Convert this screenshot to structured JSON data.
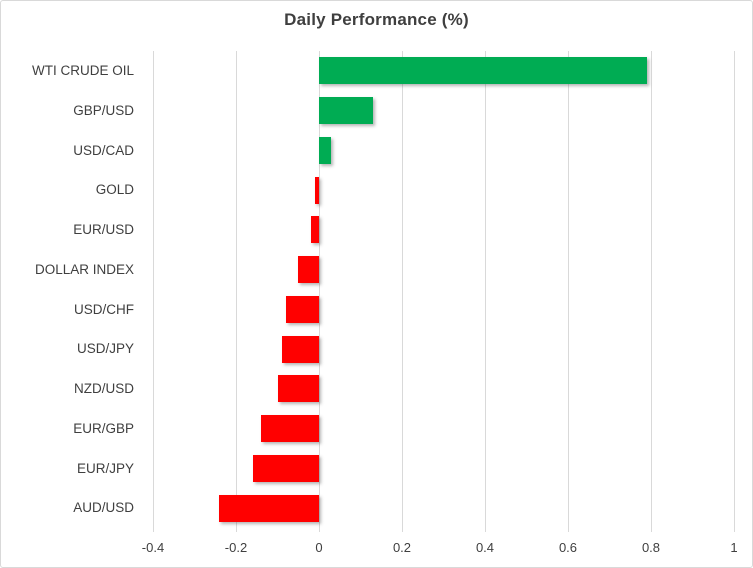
{
  "colors": {
    "positive": "#00AC53",
    "negative": "#FF0000",
    "gridline": "#D9D9D9",
    "border": "#D9D9D9",
    "text": "#3F3F3F"
  },
  "chart_data": {
    "type": "bar",
    "orientation": "horizontal",
    "title": "Daily Performance (%)",
    "categories": [
      "WTI CRUDE OIL",
      "GBP/USD",
      "USD/CAD",
      "GOLD",
      "EUR/USD",
      "DOLLAR INDEX",
      "USD/CHF",
      "USD/JPY",
      "NZD/USD",
      "EUR/GBP",
      "EUR/JPY",
      "AUD/USD"
    ],
    "values": [
      0.79,
      0.13,
      0.03,
      -0.01,
      -0.02,
      -0.05,
      -0.08,
      -0.09,
      -0.1,
      -0.14,
      -0.16,
      -0.24
    ],
    "xlabel": "",
    "ylabel": "",
    "xlim": [
      -0.4,
      1.0
    ],
    "xticks": [
      -0.4,
      -0.2,
      0,
      0.2,
      0.4,
      0.6,
      0.8,
      1
    ],
    "xtick_labels": [
      "-0.4",
      "-0.2",
      "0",
      "0.2",
      "0.4",
      "0.6",
      "0.8",
      "1"
    ],
    "grid": true,
    "legend": false,
    "positive_color": "#00AC53",
    "negative_color": "#FF0000"
  }
}
